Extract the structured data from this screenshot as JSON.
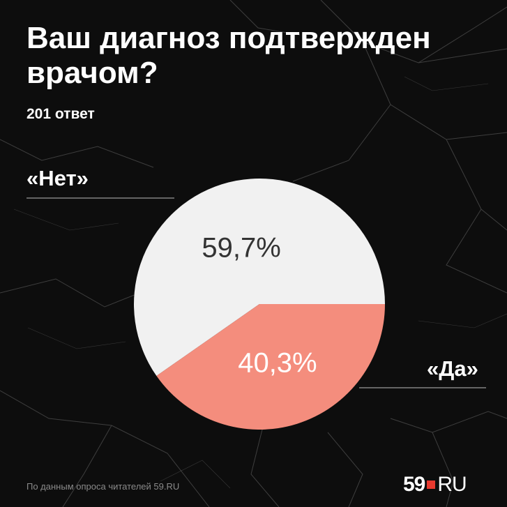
{
  "title": "Ваш диагноз подтвержден врачом?",
  "subtitle": "201 ответ",
  "footer": "По данным опроса читателей 59.RU",
  "logo": {
    "digits": "59",
    "suffix": "RU"
  },
  "colors": {
    "background": "#0d0d0d",
    "no": "#f1f1f1",
    "yes": "#f48d7d",
    "accent": "#e8392e",
    "text": "#ffffff",
    "value_text": "#333333"
  },
  "chart_data": {
    "type": "pie",
    "title": "Ваш диагноз подтвержден врачом?",
    "slices": [
      {
        "label": "«Нет»",
        "value": 59.7,
        "display": "59,7%",
        "color": "#f1f1f1"
      },
      {
        "label": "«Да»",
        "value": 40.3,
        "display": "40,3%",
        "color": "#f48d7d"
      }
    ]
  }
}
